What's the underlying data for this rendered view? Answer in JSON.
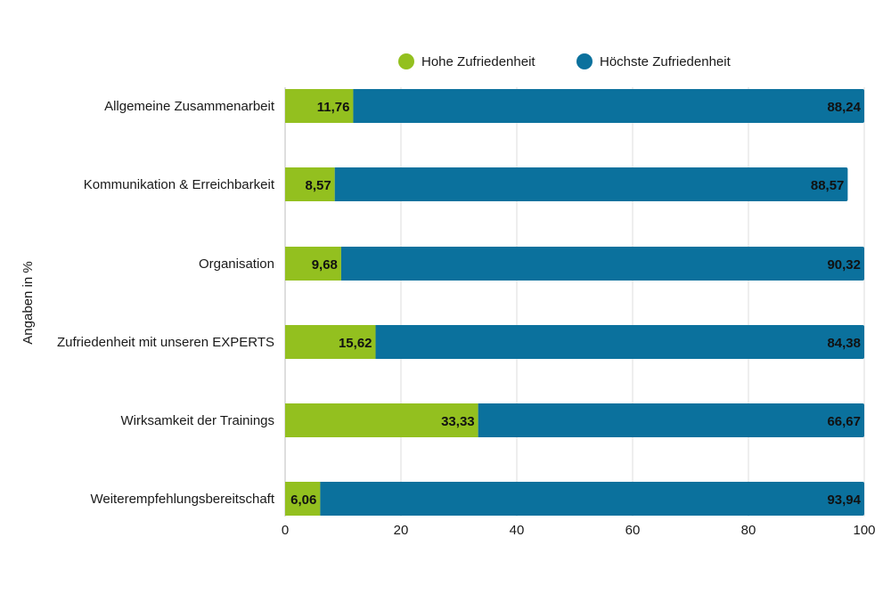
{
  "chart_data": {
    "type": "bar",
    "orientation": "horizontal",
    "stacked": true,
    "title": "",
    "xlabel": "",
    "ylabel": "Angaben in %",
    "xlim": [
      0,
      100
    ],
    "xticks": [
      "0",
      "20",
      "40",
      "60",
      "80",
      "100"
    ],
    "grid": true,
    "legend_position": "top",
    "categories": [
      "Allgemeine Zusammenarbeit",
      "Kommunikation & Erreichbarkeit",
      "Organisation",
      "Zufriedenheit mit unseren EXPERTS",
      "Wirksamkeit der Trainings",
      "Weiterempfehlungsbereitschaft"
    ],
    "series": [
      {
        "name": "Hohe Zufriedenheit",
        "color": "#93c01f",
        "values": [
          11.76,
          8.57,
          9.68,
          15.62,
          33.33,
          6.06
        ],
        "labels": [
          "11,76",
          "8,57",
          "9,68",
          "15,62",
          "33,33",
          "6,06"
        ]
      },
      {
        "name": "Höchste Zufriedenheit",
        "color": "#0b719d",
        "values": [
          88.24,
          88.57,
          90.32,
          84.38,
          66.67,
          93.94
        ],
        "labels": [
          "88,24",
          "88,57",
          "90,32",
          "84,38",
          "66,67",
          "93,94"
        ]
      }
    ]
  }
}
